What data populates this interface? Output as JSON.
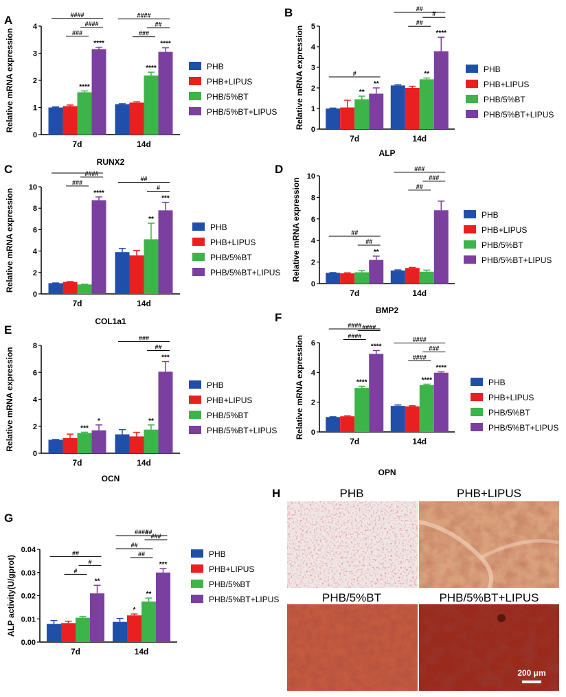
{
  "colors": {
    "PHB": "#1f4fa8",
    "PHB+LIPUS": "#e8201f",
    "PHB/5%BT": "#3cb44a",
    "PHB/5%BT+LIPUS": "#7b3fa0"
  },
  "legend": [
    "PHB",
    "PHB+LIPUS",
    "PHB/5%BT",
    "PHB/5%BT+LIPUS"
  ],
  "chart_data": [
    {
      "panel": "A",
      "type": "bar",
      "title": "RUNX2",
      "ylabel": "Relative mRNA expression",
      "ylim": [
        0,
        4
      ],
      "ticks": [
        0,
        1,
        2,
        3,
        4
      ],
      "categories": [
        "7d",
        "14d"
      ],
      "series": [
        {
          "name": "PHB",
          "values": [
            1.0,
            1.12
          ],
          "errors": [
            0.02,
            0.02
          ]
        },
        {
          "name": "PHB+LIPUS",
          "values": [
            1.05,
            1.18
          ],
          "errors": [
            0.04,
            0.03
          ]
        },
        {
          "name": "PHB/5%BT",
          "values": [
            1.56,
            2.18
          ],
          "errors": [
            0.05,
            0.12
          ]
        },
        {
          "name": "PHB/5%BT+LIPUS",
          "values": [
            3.15,
            3.05
          ],
          "errors": [
            0.07,
            0.15
          ]
        }
      ],
      "stars": [
        [
          "",
          "",
          "****",
          "****"
        ],
        [
          "",
          "",
          "****",
          "****"
        ]
      ],
      "brackets": [
        [
          [
            "###",
            "1-2"
          ],
          [
            "####",
            "2-3"
          ],
          [
            "####",
            "0-3"
          ]
        ],
        [
          [
            "###",
            "1-2"
          ],
          [
            "##",
            "2-3"
          ],
          [
            "####",
            "0-3"
          ]
        ]
      ]
    },
    {
      "panel": "B",
      "type": "bar",
      "title": "ALP",
      "ylabel": "Relative mRNA expression",
      "ylim": [
        0,
        5
      ],
      "ticks": [
        0,
        1,
        2,
        3,
        4,
        5
      ],
      "categories": [
        "7d",
        "14d"
      ],
      "series": [
        {
          "name": "PHB",
          "values": [
            1.0,
            2.12
          ],
          "errors": [
            0.02,
            0.03
          ]
        },
        {
          "name": "PHB+LIPUS",
          "values": [
            1.05,
            2.0
          ],
          "errors": [
            0.35,
            0.08
          ]
        },
        {
          "name": "PHB/5%BT",
          "values": [
            1.45,
            2.42
          ],
          "errors": [
            0.15,
            0.06
          ]
        },
        {
          "name": "PHB/5%BT+LIPUS",
          "values": [
            1.72,
            3.78
          ],
          "errors": [
            0.28,
            0.68
          ]
        }
      ],
      "stars": [
        [
          "",
          "",
          "**",
          "**"
        ],
        [
          "",
          "",
          "**",
          "****"
        ]
      ],
      "brackets": [
        [
          [
            "#",
            "0-3"
          ]
        ],
        [
          [
            "##",
            "1-2"
          ],
          [
            "#",
            "2-3"
          ],
          [
            "##",
            "0-3"
          ]
        ]
      ]
    },
    {
      "panel": "C",
      "type": "bar",
      "title": "COL1a1",
      "ylabel": "Relative mRNA expression",
      "ylim": [
        0,
        10
      ],
      "ticks": [
        0,
        2,
        4,
        6,
        8,
        10
      ],
      "categories": [
        "7d",
        "14d"
      ],
      "series": [
        {
          "name": "PHB",
          "values": [
            1.0,
            3.9
          ],
          "errors": [
            0.02,
            0.35
          ]
        },
        {
          "name": "PHB+LIPUS",
          "values": [
            1.12,
            3.6
          ],
          "errors": [
            0.03,
            0.45
          ]
        },
        {
          "name": "PHB/5%BT",
          "values": [
            0.88,
            5.1
          ],
          "errors": [
            0.03,
            1.5
          ]
        },
        {
          "name": "PHB/5%BT+LIPUS",
          "values": [
            8.75,
            7.8
          ],
          "errors": [
            0.3,
            0.75
          ]
        }
      ],
      "stars": [
        [
          "",
          "",
          "",
          "****"
        ],
        [
          "",
          "",
          "**",
          "***"
        ]
      ],
      "brackets": [
        [
          [
            "###",
            "1-2"
          ],
          [
            "####",
            "2-3"
          ],
          [
            "",
            "0-3"
          ]
        ],
        [
          [
            "#",
            "2-3"
          ],
          [
            "##",
            "0-3"
          ]
        ]
      ]
    },
    {
      "panel": "D",
      "type": "bar",
      "title": "BMP2",
      "ylabel": "Relative mRNA expression",
      "ylim": [
        0,
        10
      ],
      "ticks": [
        0,
        2,
        4,
        6,
        8,
        10
      ],
      "categories": [
        "7d",
        "14d"
      ],
      "series": [
        {
          "name": "PHB",
          "values": [
            1.0,
            1.22
          ],
          "errors": [
            0.02,
            0.05
          ]
        },
        {
          "name": "PHB+LIPUS",
          "values": [
            0.95,
            1.45
          ],
          "errors": [
            0.05,
            0.05
          ]
        },
        {
          "name": "PHB/5%BT",
          "values": [
            1.05,
            1.1
          ],
          "errors": [
            0.15,
            0.15
          ]
        },
        {
          "name": "PHB/5%BT+LIPUS",
          "values": [
            2.2,
            6.8
          ],
          "errors": [
            0.35,
            0.85
          ]
        }
      ],
      "stars": [
        [
          "",
          "",
          "",
          "**"
        ],
        [
          "",
          "",
          "",
          ""
        ]
      ],
      "brackets": [
        [
          [
            "##",
            "2-3"
          ],
          [
            "##",
            "0-3"
          ]
        ],
        [
          [
            "##",
            "1-2"
          ],
          [
            "###",
            "2-3"
          ],
          [
            "###",
            "0-3"
          ]
        ]
      ]
    },
    {
      "panel": "E",
      "type": "bar",
      "title": "OCN",
      "ylabel": "Relative mRNA expression",
      "ylim": [
        0,
        8
      ],
      "ticks": [
        0,
        2,
        4,
        6,
        8
      ],
      "categories": [
        "7d",
        "14d"
      ],
      "series": [
        {
          "name": "PHB",
          "values": [
            1.0,
            1.4
          ],
          "errors": [
            0.02,
            0.35
          ]
        },
        {
          "name": "PHB+LIPUS",
          "values": [
            1.12,
            1.25
          ],
          "errors": [
            0.3,
            0.3
          ]
        },
        {
          "name": "PHB/5%BT",
          "values": [
            1.5,
            1.75
          ],
          "errors": [
            0.06,
            0.35
          ]
        },
        {
          "name": "PHB/5%BT+LIPUS",
          "values": [
            1.7,
            6.05
          ],
          "errors": [
            0.4,
            0.75
          ]
        }
      ],
      "stars": [
        [
          "",
          "",
          "***",
          "*"
        ],
        [
          "",
          "",
          "**",
          "***"
        ]
      ],
      "brackets": [
        [],
        [
          [
            "##",
            "2-3"
          ],
          [
            "###",
            "0-3"
          ]
        ]
      ]
    },
    {
      "panel": "F",
      "type": "bar",
      "title": "OPN",
      "ylabel": "Relative mRNA expression",
      "ylim": [
        0,
        6
      ],
      "ticks": [
        0,
        2,
        4,
        6
      ],
      "categories": [
        "7d",
        "14d"
      ],
      "series": [
        {
          "name": "PHB",
          "values": [
            1.0,
            1.75
          ],
          "errors": [
            0.02,
            0.06
          ]
        },
        {
          "name": "PHB+LIPUS",
          "values": [
            1.05,
            1.72
          ],
          "errors": [
            0.03,
            0.04
          ]
        },
        {
          "name": "PHB/5%BT",
          "values": [
            2.95,
            3.15
          ],
          "errors": [
            0.12,
            0.06
          ]
        },
        {
          "name": "PHB/5%BT+LIPUS",
          "values": [
            5.25,
            3.98
          ],
          "errors": [
            0.22,
            0.06
          ]
        }
      ],
      "stars": [
        [
          "",
          "",
          "****",
          "****"
        ],
        [
          "",
          "",
          "****",
          "****"
        ]
      ],
      "brackets": [
        [
          [
            "####",
            "1-2"
          ],
          [
            "####",
            "2-3"
          ],
          [
            "####",
            "0-3"
          ]
        ],
        [
          [
            "####",
            "1-2"
          ],
          [
            "###",
            "2-3"
          ],
          [
            "####",
            "0-3"
          ]
        ]
      ]
    },
    {
      "panel": "G",
      "type": "bar",
      "title": "",
      "ylabel": "ALP activity(U/gprot)",
      "ylim": [
        0,
        0.04
      ],
      "ticks": [
        "0.00",
        "0.01",
        "0.02",
        "0.03",
        "0.04"
      ],
      "categories": [
        "7d",
        "14d"
      ],
      "series": [
        {
          "name": "PHB",
          "values": [
            0.0078,
            0.0087
          ],
          "errors": [
            0.0015,
            0.0015
          ]
        },
        {
          "name": "PHB+LIPUS",
          "values": [
            0.0082,
            0.0115
          ],
          "errors": [
            0.0008,
            0.0006
          ]
        },
        {
          "name": "PHB/5%BT",
          "values": [
            0.0105,
            0.0175
          ],
          "errors": [
            0.0005,
            0.0015
          ]
        },
        {
          "name": "PHB/5%BT+LIPUS",
          "values": [
            0.021,
            0.03
          ],
          "errors": [
            0.0035,
            0.0017
          ]
        }
      ],
      "stars": [
        [
          "",
          "",
          "",
          "**"
        ],
        [
          "",
          "*",
          "**",
          "***"
        ]
      ],
      "brackets": [
        [
          [
            "#",
            "1-2"
          ],
          [
            "#",
            "2-3"
          ],
          [
            "##",
            "0-3"
          ]
        ],
        [
          [
            "##",
            "1-2"
          ],
          [
            "##",
            "0-2"
          ],
          [
            "###",
            "2-3"
          ],
          [
            "####",
            "0-3"
          ],
          [
            "##",
            "1-3"
          ]
        ]
      ]
    }
  ],
  "images": {
    "panel_label": "H",
    "titles": [
      "PHB",
      "PHB+LIPUS",
      "PHB/5%BT",
      "PHB/5%BT+LIPUS"
    ],
    "scale_bar": "200 μm"
  }
}
